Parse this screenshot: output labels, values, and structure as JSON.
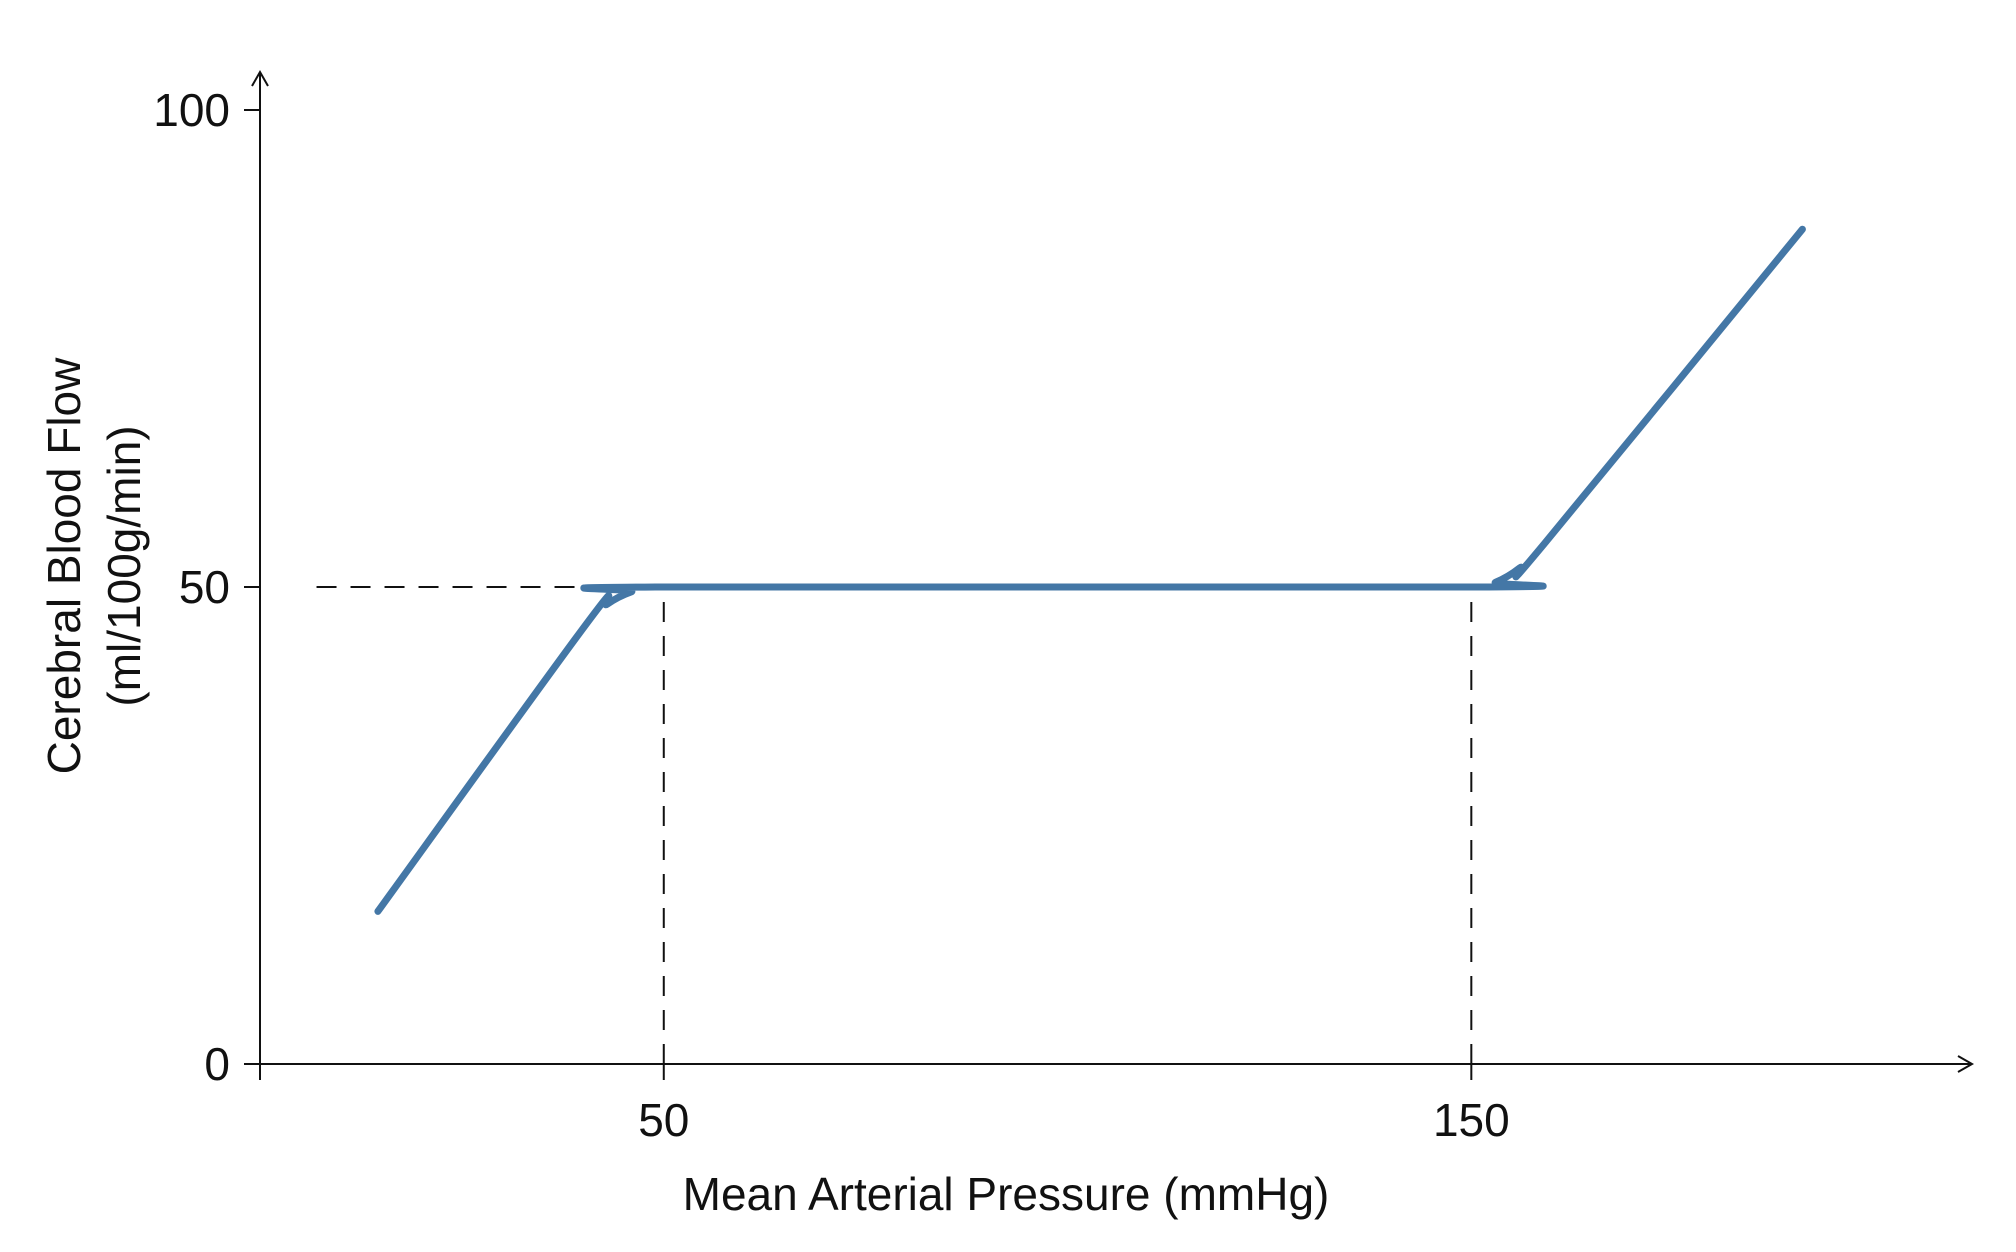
{
  "chart_data": {
    "type": "line",
    "title": "",
    "xlabel": "Mean Arterial Pressure (mmHg)",
    "ylabel": "Cerebral Blood Flow",
    "ylabel_unit": "(ml/100g/min)",
    "xlim": [
      0,
      212
    ],
    "ylim": [
      0,
      100
    ],
    "x_ticks": [
      {
        "value": 50,
        "label": "50"
      },
      {
        "value": 150,
        "label": "150"
      }
    ],
    "y_ticks": [
      {
        "value": 0,
        "label": "0"
      },
      {
        "value": 50,
        "label": "50"
      },
      {
        "value": 100,
        "label": "100"
      }
    ],
    "grid": false,
    "legend": "none",
    "line_color": "#4477a6",
    "series": [
      {
        "points": [
          {
            "x": 14.6,
            "y": 16.0
          },
          {
            "x": 40.3,
            "y": 46.0
          },
          {
            "x": 43.0,
            "y": 48.2
          },
          {
            "x": 46.0,
            "y": 49.5
          },
          {
            "x": 49.0,
            "y": 50.0
          },
          {
            "x": 150.0,
            "y": 50.0
          },
          {
            "x": 153.0,
            "y": 50.5
          },
          {
            "x": 156.0,
            "y": 52.0
          },
          {
            "x": 159.0,
            "y": 54.5
          },
          {
            "x": 191.0,
            "y": 87.5
          }
        ]
      }
    ],
    "reference_lines": [
      {
        "orientation": "horizontal",
        "y": 50,
        "x_from": 7,
        "x_to": 50,
        "style": "dashed"
      },
      {
        "orientation": "vertical",
        "x": 50,
        "y_from": 0,
        "y_to": 50,
        "style": "dashed"
      },
      {
        "orientation": "vertical",
        "x": 150,
        "y_from": 0,
        "y_to": 50,
        "style": "dashed"
      }
    ]
  }
}
